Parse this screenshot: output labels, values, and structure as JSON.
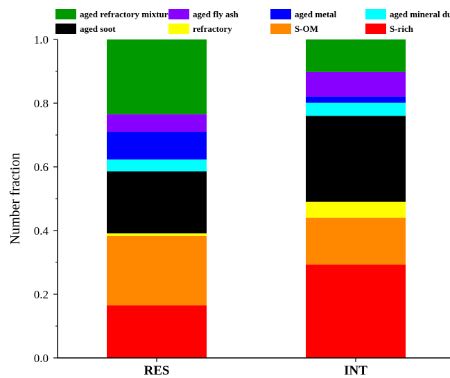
{
  "chart_data": {
    "type": "bar",
    "stacked": true,
    "categories": [
      "RES",
      "INT"
    ],
    "ylabel": "Number fraction",
    "ylim": [
      0,
      1.0
    ],
    "yticks": [
      "0.0",
      "0.2",
      "0.4",
      "0.6",
      "0.8",
      "1.0"
    ],
    "legend_position": "top",
    "series": [
      {
        "name": "S-rich",
        "color": "#ff0000",
        "values": [
          0.165,
          0.293
        ]
      },
      {
        "name": "S-OM",
        "color": "#ff8800",
        "values": [
          0.218,
          0.147
        ]
      },
      {
        "name": "refractory",
        "color": "#ffff00",
        "values": [
          0.008,
          0.05
        ]
      },
      {
        "name": "aged soot",
        "color": "#000000",
        "values": [
          0.195,
          0.27
        ]
      },
      {
        "name": "aged mineral dust",
        "color": "#00ffff",
        "values": [
          0.037,
          0.041
        ]
      },
      {
        "name": "aged metal",
        "color": "#0000ff",
        "values": [
          0.087,
          0.02
        ]
      },
      {
        "name": "aged fly ash",
        "color": "#8800ff",
        "values": [
          0.055,
          0.077
        ]
      },
      {
        "name": "aged refractory mixture",
        "color": "#009900",
        "values": [
          0.235,
          0.102
        ]
      }
    ],
    "legend_order": [
      "aged refractory mixture",
      "aged fly ash",
      "aged metal",
      "aged mineral dust",
      "aged soot",
      "refractory",
      "S-OM",
      "S-rich"
    ]
  }
}
